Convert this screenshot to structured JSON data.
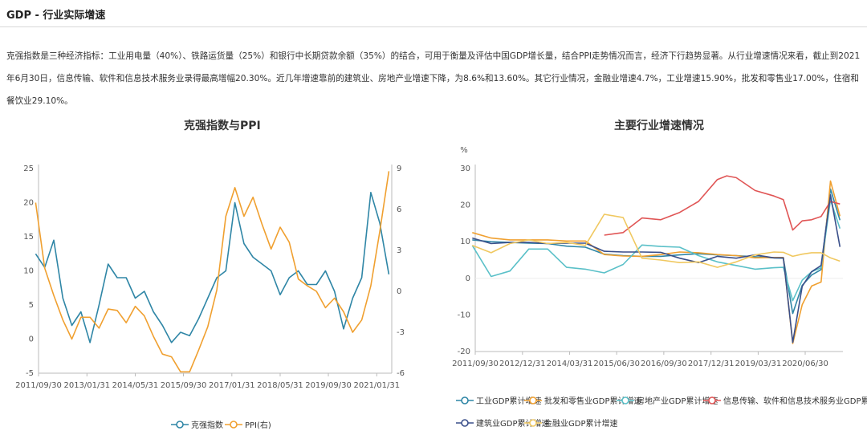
{
  "header": {
    "title": "GDP - 行业实际增速"
  },
  "description": "克强指数是三种经济指标：工业用电量（40%）、铁路运货量（25%）和银行中长期贷款余额（35%）的结合，可用于衡量及评估中国GDP增长量，结合PPI走势情况而言，经济下行趋势显著。从行业增速情况来看，截止到2021年6月30日，信息传输、软件和信息技术服务业录得最高增幅20.30%。近几年增速靠前的建筑业、房地产业增速下降，为8.6%和13.60%。其它行业情况，金融业增速4.7%，工业增速15.90%，批发和零售业17.00%，住宿和餐饮业29.10%。",
  "colors": {
    "blue": "#2f86a6",
    "orange": "#f0a030",
    "teal": "#5ac0c8",
    "red": "#e05555",
    "navy": "#3a4f8a",
    "yellow": "#f0c860"
  },
  "chart_data": [
    {
      "type": "line",
      "title": "克强指数与PPI",
      "x_ticks": [
        "2011/09/30",
        "2013/01/31",
        "2014/05/31",
        "2015/09/30",
        "2017/01/31",
        "2018/05/31",
        "2019/09/30",
        "2021/01/31"
      ],
      "x_range": [
        "2011-09-30",
        "2021-06-30"
      ],
      "ylim": [
        -5,
        25
      ],
      "y_ticks": [
        -5,
        0,
        5,
        10,
        15,
        20,
        25
      ],
      "y2lim": [
        -6,
        9
      ],
      "y2_ticks": [
        -6,
        -3,
        0,
        3,
        6,
        9
      ],
      "legend_position": "bottom",
      "series": [
        {
          "name": "克强指数",
          "color": "#2f86a6",
          "axis": "left",
          "x": [
            "2011-09",
            "2011-12",
            "2012-03",
            "2012-06",
            "2012-09",
            "2012-12",
            "2013-03",
            "2013-06",
            "2013-09",
            "2013-12",
            "2014-03",
            "2014-06",
            "2014-09",
            "2014-12",
            "2015-03",
            "2015-06",
            "2015-09",
            "2015-12",
            "2016-03",
            "2016-06",
            "2016-09",
            "2016-12",
            "2017-03",
            "2017-06",
            "2017-09",
            "2017-12",
            "2018-03",
            "2018-06",
            "2018-09",
            "2018-12",
            "2019-03",
            "2019-06",
            "2019-09",
            "2019-12",
            "2020-03",
            "2020-06",
            "2020-09",
            "2020-12",
            "2021-03",
            "2021-06"
          ],
          "y": [
            12.5,
            10.5,
            14.5,
            6,
            2,
            4,
            -0.5,
            5,
            11,
            9,
            9,
            6,
            7,
            4,
            2,
            -0.5,
            1,
            0.5,
            3,
            6,
            9,
            10,
            20,
            14,
            12,
            11,
            10,
            6.5,
            9,
            10,
            8,
            8,
            10,
            7,
            1.5,
            6,
            9,
            21.5,
            17,
            9.5
          ]
        },
        {
          "name": "PPI(右)",
          "color": "#f0a030",
          "axis": "right",
          "x": [
            "2011-09",
            "2011-12",
            "2012-03",
            "2012-06",
            "2012-09",
            "2012-12",
            "2013-03",
            "2013-06",
            "2013-09",
            "2013-12",
            "2014-03",
            "2014-06",
            "2014-09",
            "2014-12",
            "2015-03",
            "2015-06",
            "2015-09",
            "2015-12",
            "2016-03",
            "2016-06",
            "2016-09",
            "2016-12",
            "2017-03",
            "2017-06",
            "2017-09",
            "2017-12",
            "2018-03",
            "2018-06",
            "2018-09",
            "2018-12",
            "2019-03",
            "2019-06",
            "2019-09",
            "2019-12",
            "2020-03",
            "2020-06",
            "2020-09",
            "2020-12",
            "2021-03",
            "2021-06"
          ],
          "y": [
            6.5,
            1.7,
            -0.3,
            -2.1,
            -3.5,
            -1.9,
            -1.9,
            -2.7,
            -1.3,
            -1.4,
            -2.3,
            -1.1,
            -1.8,
            -3.3,
            -4.6,
            -4.8,
            -5.9,
            -5.9,
            -4.3,
            -2.6,
            0.1,
            5.5,
            7.6,
            5.5,
            6.9,
            4.9,
            3.1,
            4.7,
            3.6,
            0.9,
            0.4,
            0,
            -1.2,
            -0.5,
            -1.5,
            -3,
            -2.1,
            0.4,
            4.4,
            8.8
          ]
        }
      ],
      "legend": [
        "克强指数",
        "PPI(右)"
      ]
    },
    {
      "type": "line",
      "title": "主要行业增速情况",
      "y_unit": "%",
      "x_ticks": [
        "2011/09/30",
        "2012/12/31",
        "2014/03/31",
        "2015/06/30",
        "2016/09/30",
        "2017/12/31",
        "2019/03/31",
        "2020/06/30"
      ],
      "x_range": [
        "2011-09-30",
        "2021-06-30"
      ],
      "ylim": [
        -20,
        30
      ],
      "y_ticks": [
        -20,
        -10,
        0,
        10,
        20,
        30
      ],
      "legend_position": "bottom",
      "series": [
        {
          "name": "工业GDP累计增速",
          "color": "#2f86a6",
          "x": [
            "2011-09",
            "2012-03",
            "2012-09",
            "2013-03",
            "2013-09",
            "2014-03",
            "2014-09",
            "2015-03",
            "2015-09",
            "2016-03",
            "2016-09",
            "2017-03",
            "2017-09",
            "2018-03",
            "2018-09",
            "2019-03",
            "2019-09",
            "2019-12",
            "2020-03",
            "2020-06",
            "2020-09",
            "2020-12",
            "2021-03",
            "2021-06"
          ],
          "y": [
            10.5,
            10,
            9.8,
            9.6,
            9.5,
            8.8,
            8.5,
            6.6,
            6.2,
            6,
            6,
            6.4,
            6.7,
            6.4,
            6.2,
            5.9,
            5.6,
            5.5,
            -9.6,
            -1.9,
            0.9,
            2.4,
            24.4,
            15.9
          ]
        },
        {
          "name": "批发和零售业GDP累计增速",
          "color": "#f0a030",
          "x": [
            "2011-09",
            "2012-03",
            "2012-09",
            "2013-03",
            "2013-09",
            "2014-03",
            "2014-09",
            "2015-03",
            "2015-09",
            "2016-03",
            "2016-09",
            "2017-03",
            "2017-09",
            "2018-03",
            "2018-09",
            "2019-03",
            "2019-09",
            "2019-12",
            "2020-03",
            "2020-06",
            "2020-09",
            "2020-12",
            "2021-03",
            "2021-06"
          ],
          "y": [
            12.5,
            11,
            10.5,
            10.5,
            10.5,
            10.2,
            10.2,
            6.5,
            6.1,
            6,
            6.5,
            7.2,
            7,
            6.5,
            6.2,
            5.6,
            5.7,
            5.7,
            -17.8,
            -7.2,
            -2.1,
            -1,
            26.6,
            17
          ]
        },
        {
          "name": "房地产业GDP累计增速",
          "color": "#5ac0c8",
          "x": [
            "2011-09",
            "2012-03",
            "2012-09",
            "2013-03",
            "2013-09",
            "2014-03",
            "2014-09",
            "2015-03",
            "2015-09",
            "2016-03",
            "2016-09",
            "2017-03",
            "2017-09",
            "2018-03",
            "2018-09",
            "2019-03",
            "2019-09",
            "2019-12",
            "2020-03",
            "2020-06",
            "2020-09",
            "2020-12",
            "2021-03",
            "2021-06"
          ],
          "y": [
            9,
            0.5,
            2,
            8,
            8,
            3,
            2.5,
            1.5,
            3.8,
            9.1,
            8.7,
            8.5,
            6.2,
            4.5,
            3.5,
            2.5,
            2.9,
            3,
            -6.1,
            -0.5,
            1.8,
            2.9,
            21.4,
            13.6
          ]
        },
        {
          "name": "信息传输、软件和信息技术服务业GDP累计增速",
          "color": "#e05555",
          "x": [
            "2015-03",
            "2015-09",
            "2016-03",
            "2016-09",
            "2017-03",
            "2017-09",
            "2018-03",
            "2018-06",
            "2018-09",
            "2019-03",
            "2019-09",
            "2019-12",
            "2020-03",
            "2020-06",
            "2020-09",
            "2020-12",
            "2021-03",
            "2021-06"
          ],
          "y": [
            11.8,
            12.5,
            16.5,
            16,
            18,
            21,
            27,
            28,
            27.5,
            24,
            22.5,
            21.5,
            13.2,
            15.7,
            16,
            16.9,
            21,
            20.3
          ]
        },
        {
          "name": "建筑业GDP累计增速",
          "color": "#3a4f8a",
          "x": [
            "2011-09",
            "2012-03",
            "2012-09",
            "2013-03",
            "2013-09",
            "2014-03",
            "2014-09",
            "2015-03",
            "2015-09",
            "2016-03",
            "2016-09",
            "2017-03",
            "2017-09",
            "2018-03",
            "2018-09",
            "2019-03",
            "2019-09",
            "2019-12",
            "2020-03",
            "2020-06",
            "2020-09",
            "2020-12",
            "2021-03",
            "2021-06"
          ],
          "y": [
            11,
            9.5,
            9.8,
            9.8,
            9.5,
            9.6,
            9.6,
            7.4,
            7.2,
            7.2,
            7.1,
            5.5,
            4.3,
            6,
            5.5,
            6.4,
            5.6,
            5.6,
            -17.5,
            -2.2,
            1.8,
            3.5,
            22.8,
            8.6
          ]
        },
        {
          "name": "金融业GDP累计增速",
          "color": "#f0c860",
          "x": [
            "2011-09",
            "2012-03",
            "2012-09",
            "2013-03",
            "2013-09",
            "2014-03",
            "2014-09",
            "2015-03",
            "2015-09",
            "2016-03",
            "2016-09",
            "2017-03",
            "2017-09",
            "2018-03",
            "2018-09",
            "2019-03",
            "2019-09",
            "2019-12",
            "2020-03",
            "2020-06",
            "2020-09",
            "2020-12",
            "2021-03",
            "2021-06"
          ],
          "y": [
            9,
            7,
            9.5,
            10.5,
            9.5,
            9.8,
            9,
            17.5,
            16.6,
            5.5,
            5,
            4.3,
            4.5,
            3,
            4.5,
            6.4,
            7.2,
            7.1,
            6,
            6.6,
            7,
            7,
            5.6,
            4.7
          ]
        }
      ],
      "legend": [
        "工业GDP累计增速",
        "批发和零售业GDP累计增速",
        "房地产业GDP累计增速",
        "信息传输、软件和信息技术服务业GDP累计增速",
        "建筑业GDP累计增速",
        "金融业GDP累计增速"
      ]
    }
  ]
}
